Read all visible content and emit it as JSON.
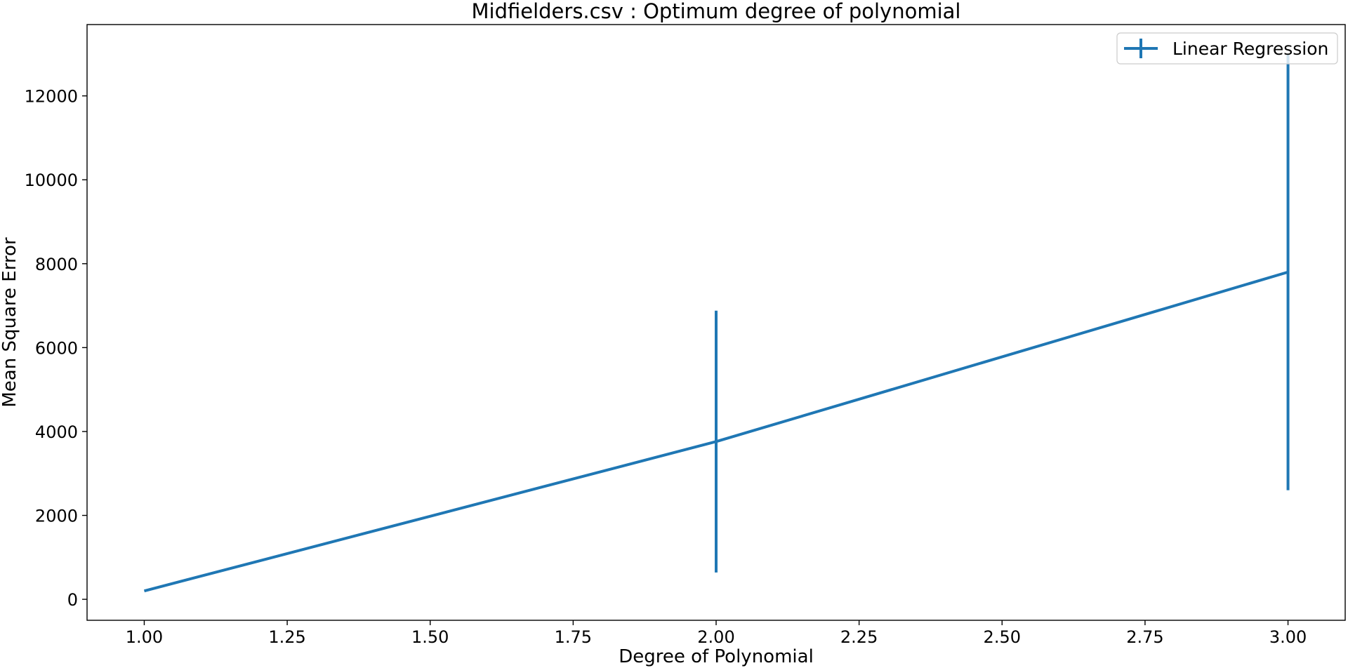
{
  "chart_data": {
    "type": "line",
    "title": "Midfielders.csv : Optimum degree of polynomial",
    "xlabel": "Degree of Polynomial",
    "ylabel": "Mean Square Error",
    "xlim": [
      0.9,
      3.1
    ],
    "ylim": [
      -500,
      13700
    ],
    "xticks": [
      "1.00",
      "1.25",
      "1.50",
      "1.75",
      "2.00",
      "2.25",
      "2.50",
      "2.75",
      "3.00"
    ],
    "yticks": [
      "0",
      "2000",
      "4000",
      "6000",
      "8000",
      "10000",
      "12000"
    ],
    "grid": false,
    "legend_position": "top-right",
    "series": [
      {
        "name": "Linear Regression",
        "color": "#1f77b4",
        "x": [
          1,
          2,
          3
        ],
        "y": [
          200,
          3760,
          7800
        ],
        "yerr": [
          0,
          3120,
          5200
        ]
      }
    ]
  }
}
